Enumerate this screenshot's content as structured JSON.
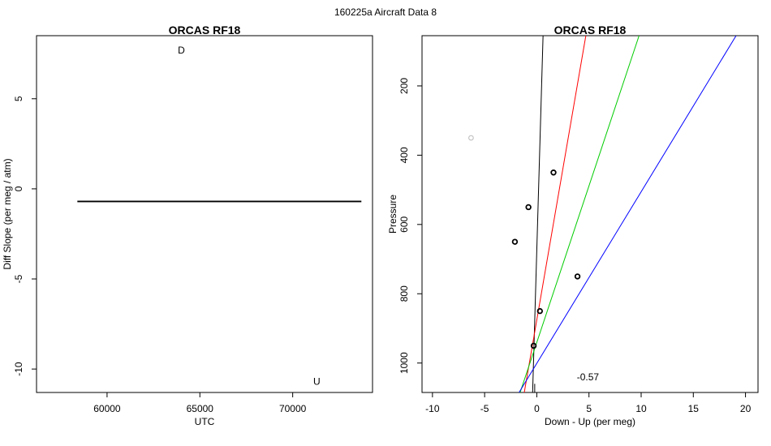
{
  "page": {
    "suptitle": "160225a   Aircraft Data 8"
  },
  "chart_data": [
    {
      "type": "line",
      "title": "ORCAS RF18",
      "xlabel": "UTC",
      "ylabel": "Diff Slope (per meg / atm)",
      "xlim": [
        56200,
        74300
      ],
      "ylim": [
        -11.3,
        8.5
      ],
      "xticks": [
        60000,
        65000,
        70000
      ],
      "yticks": [
        5,
        0,
        -5,
        -10
      ],
      "series": [
        {
          "color": "#000000",
          "x": [
            58400,
            73700
          ],
          "y": [
            -0.7,
            -0.7
          ]
        }
      ],
      "annotations": [
        {
          "text": "D",
          "x": 64000,
          "y": 7.7,
          "color": "#0000ff"
        },
        {
          "text": "U",
          "x": 71300,
          "y": -10.7,
          "color": "#ff0000"
        }
      ]
    },
    {
      "type": "scatter",
      "title": "ORCAS RF18",
      "xlabel": "Down - Up (per meg)",
      "ylabel": "Pressure",
      "xlim": [
        -11,
        21.2
      ],
      "ylim": [
        1085,
        55
      ],
      "xticks": [
        -10,
        -5,
        0,
        5,
        10,
        15,
        20
      ],
      "yticks": [
        200,
        400,
        600,
        800,
        1000
      ],
      "points": [
        {
          "x": 1.6,
          "y": 450,
          "color": "#000000"
        },
        {
          "x": -0.8,
          "y": 550,
          "color": "#000000"
        },
        {
          "x": -2.1,
          "y": 650,
          "color": "#000000"
        },
        {
          "x": 3.9,
          "y": 750,
          "color": "#000000"
        },
        {
          "x": 0.3,
          "y": 850,
          "color": "#000000"
        },
        {
          "x": -0.3,
          "y": 950,
          "color": "#000000"
        },
        {
          "x": -6.3,
          "y": 350,
          "color": "#bbbbbb"
        }
      ],
      "lines": [
        {
          "color": "#000000",
          "x": [
            -0.4,
            0.6
          ],
          "y": [
            1085,
            55
          ]
        },
        {
          "color": "#ff0000",
          "x": [
            -1.2,
            4.7
          ],
          "y": [
            1085,
            55
          ]
        },
        {
          "color": "#00cc00",
          "x": [
            -1.6,
            9.8
          ],
          "y": [
            1085,
            55
          ]
        },
        {
          "color": "#0000ff",
          "x": [
            -1.7,
            19.1
          ],
          "y": [
            1085,
            55
          ]
        }
      ],
      "vline": {
        "x": -0.2,
        "y": [
          1085,
          1060
        ]
      },
      "annotations": [
        {
          "text": "-0.57",
          "x": 4.9,
          "y": 1040,
          "color": "#000000"
        }
      ]
    }
  ]
}
